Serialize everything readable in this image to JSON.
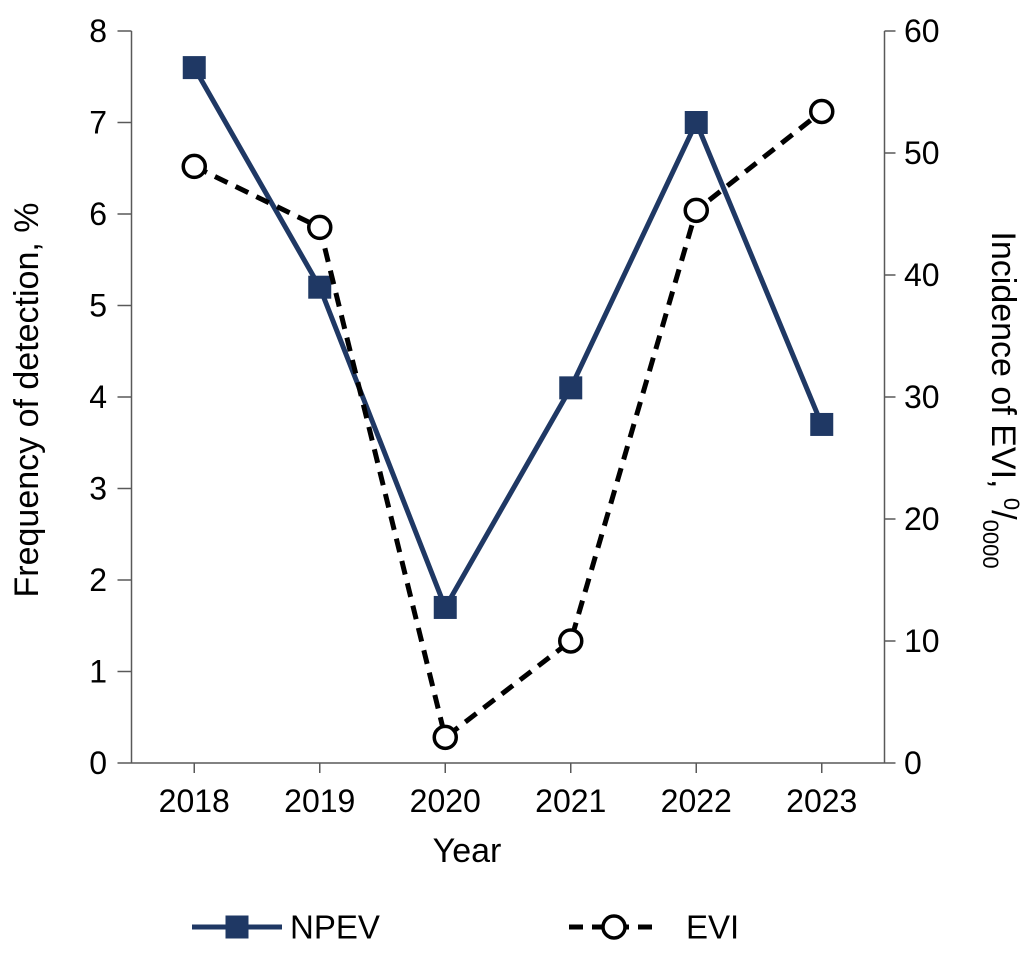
{
  "chart_data": {
    "type": "line",
    "title": "",
    "categories": [
      "2018",
      "2019",
      "2020",
      "2021",
      "2022",
      "2023"
    ],
    "series": [
      {
        "name": "NPEV",
        "axis": "left",
        "values": [
          7.6,
          5.2,
          1.7,
          4.1,
          7.0,
          3.7
        ],
        "color": "#1f3864",
        "line_style": "solid",
        "marker": "filled-square"
      },
      {
        "name": "EVI",
        "axis": "right",
        "values": [
          48.9,
          43.9,
          2.1,
          10.0,
          45.3,
          53.4
        ],
        "color": "#000000",
        "line_style": "dashed",
        "marker": "open-circle"
      }
    ],
    "xlabel": "Year",
    "left_axis": {
      "label": "Frequency of detection, %",
      "min": 0,
      "max": 8,
      "step": 1,
      "ticks": [
        "0",
        "1",
        "2",
        "3",
        "4",
        "5",
        "6",
        "7",
        "8"
      ]
    },
    "right_axis": {
      "label_text": "Incidence of EVI, ",
      "label_sup": "0",
      "label_slash": "/",
      "label_sub": "0000",
      "min": 0,
      "max": 60,
      "step": 10,
      "ticks": [
        "0",
        "10",
        "20",
        "30",
        "40",
        "50",
        "60"
      ]
    },
    "grid": false,
    "legend_position": "bottom",
    "axis_color": "#595959"
  },
  "legend": {
    "items": [
      {
        "label": "NPEV"
      },
      {
        "label": "EVI"
      }
    ]
  }
}
